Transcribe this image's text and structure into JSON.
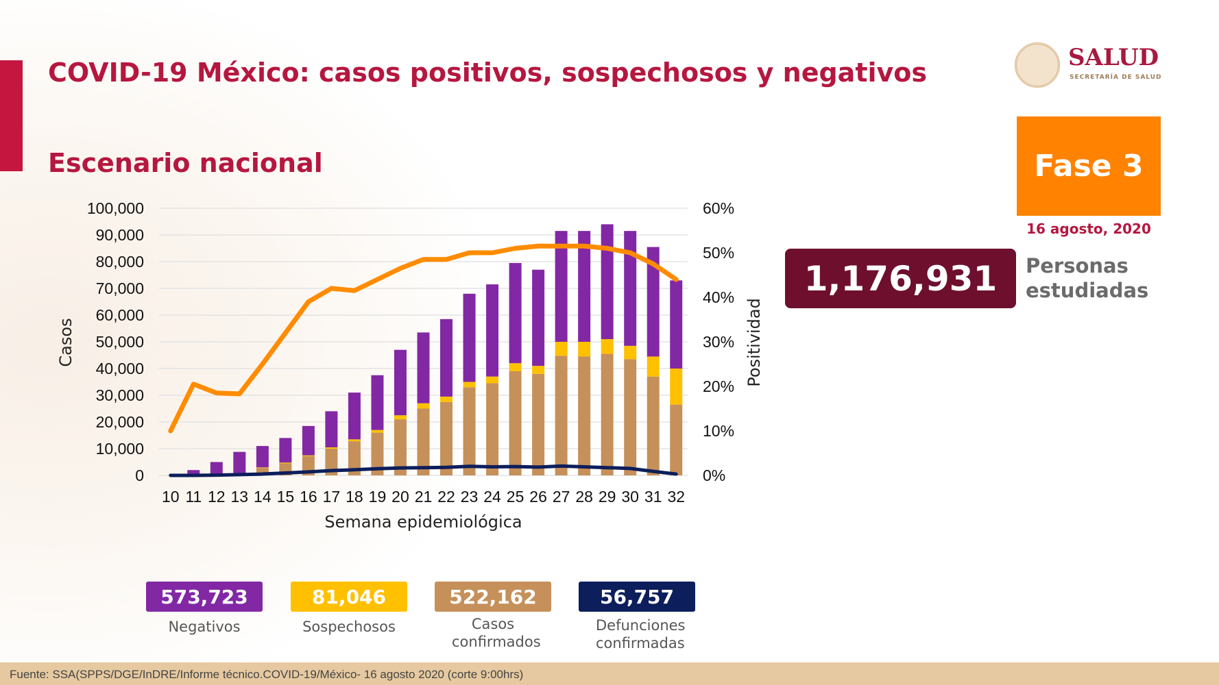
{
  "title": "COVID-19 México: casos positivos, sospechosos y negativos",
  "subtitle": "Escenario nacional",
  "logo": {
    "name": "SALUD",
    "sub": "SECRETARÍA DE SALUD",
    "seal_text": "ESTADOS UNIDOS MEXICANOS"
  },
  "phase": "Fase 3",
  "date": "16 agosto, 2020",
  "studied": {
    "value": "1,176,931",
    "label_line1": "Personas",
    "label_line2": "estudiadas"
  },
  "legend": [
    {
      "value": "573,723",
      "label": "Negativos",
      "color": "#8228a4"
    },
    {
      "value": "81,046",
      "label": "Sospechosos",
      "color": "#ffc000"
    },
    {
      "value": "522,162",
      "label": "Casos confirmados",
      "color": "#c5905a"
    },
    {
      "value": "56,757",
      "label": "Defunciones confirmadas",
      "color": "#0c1e5b"
    }
  ],
  "footer": "Fuente: SSA(SPPS/DGE/InDRE/Informe técnico.COVID-19/México- 16 agosto 2020 (corte 9:00hrs)",
  "chart_data": {
    "type": "bar",
    "xlabel": "Semana epidemiológica",
    "ylabel": "Casos",
    "y2label": "Positividad",
    "ylim": [
      0,
      100000
    ],
    "y2lim": [
      0,
      60
    ],
    "yticks": [
      "0",
      "10,000",
      "20,000",
      "30,000",
      "40,000",
      "50,000",
      "60,000",
      "70,000",
      "80,000",
      "90,000",
      "100,000"
    ],
    "y2ticks": [
      "0%",
      "10%",
      "20%",
      "30%",
      "40%",
      "50%",
      "60%"
    ],
    "grid": true,
    "categories": [
      "10",
      "11",
      "12",
      "13",
      "14",
      "15",
      "16",
      "17",
      "18",
      "19",
      "20",
      "21",
      "22",
      "23",
      "24",
      "25",
      "26",
      "27",
      "28",
      "29",
      "30",
      "31",
      "32"
    ],
    "series": [
      {
        "stack": true,
        "color": "#c5905a",
        "values": [
          0,
          200,
          300,
          800,
          2800,
          4500,
          7200,
          10000,
          12800,
          16000,
          21000,
          25000,
          27500,
          33000,
          34500,
          39000,
          38000,
          44800,
          44500,
          45500,
          43500,
          37000,
          26500
        ]
      },
      {
        "stack": true,
        "color": "#ffc000",
        "values": [
          0,
          0,
          100,
          100,
          200,
          300,
          300,
          500,
          700,
          1000,
          1500,
          2000,
          2000,
          2000,
          2500,
          3000,
          3000,
          5200,
          5500,
          5500,
          5000,
          7500,
          13500
        ]
      },
      {
        "stack": true,
        "color": "#8228a4",
        "values": [
          0,
          1800,
          4600,
          7900,
          8000,
          9200,
          11000,
          13500,
          17500,
          20500,
          24500,
          26500,
          29000,
          33000,
          34500,
          37500,
          36000,
          41500,
          41500,
          43000,
          43000,
          41000,
          33000
        ]
      },
      {
        "type": "line",
        "color": "#0c1e5b",
        "axis": "left",
        "values": [
          0,
          0,
          100,
          300,
          500,
          900,
          1300,
          1800,
          2100,
          2500,
          2800,
          2900,
          3000,
          3400,
          3200,
          3300,
          3100,
          3500,
          3200,
          2900,
          2600,
          1500,
          500
        ]
      },
      {
        "type": "line",
        "color": "#ff8c00",
        "axis": "right",
        "values": [
          10,
          20.5,
          18.5,
          18.3,
          25,
          32,
          39,
          42,
          41.5,
          44,
          46.5,
          48.5,
          48.5,
          50,
          50,
          51,
          51.5,
          51.5,
          51.5,
          51,
          50,
          47.5,
          44
        ]
      }
    ]
  }
}
